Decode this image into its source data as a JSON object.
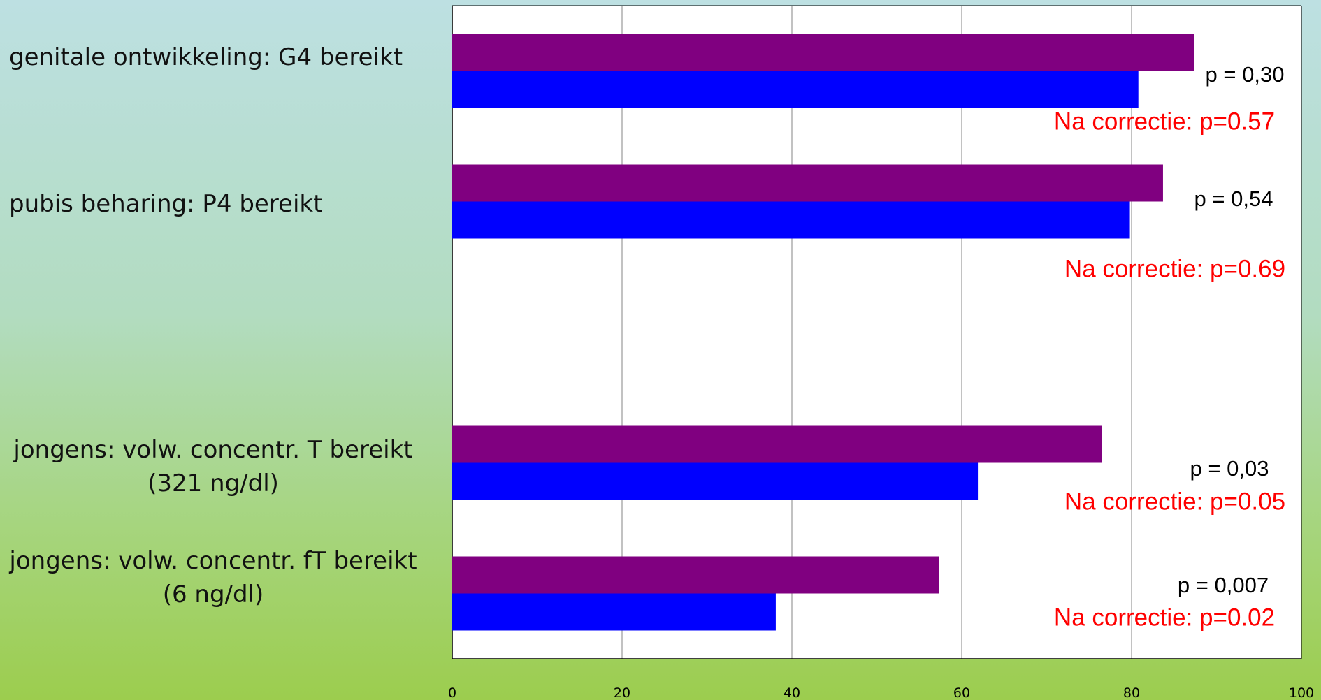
{
  "chart_data": {
    "type": "hbar",
    "categories": [
      "genitale ontwikkeling: G4 bereikt",
      "pubis beharing: P4 bereikt",
      null,
      "jongens: volw. concentr. T bereikt\n(321 ng/dl)",
      "jongens: volw. concentr.  fT bereikt\n(6 ng/dl)"
    ],
    "series": [
      {
        "color": "#800080",
        "values": [
          87.4,
          83.7,
          null,
          76.5,
          57.3
        ]
      },
      {
        "color": "#0000ff",
        "values": [
          80.8,
          79.8,
          null,
          61.9,
          38.1
        ]
      }
    ],
    "xlim": [
      0,
      100
    ],
    "xticks": [
      0,
      20,
      40,
      60,
      80,
      100
    ],
    "grid": true,
    "annotations": [
      {
        "text": "p = 0,30",
        "color": "#000000"
      },
      {
        "text": "Na correctie: p=0.57",
        "color": "#ff0000"
      },
      {
        "text": "p = 0,54",
        "color": "#000000"
      },
      {
        "text": "Na correctie: p=0.69",
        "color": "#ff0000"
      },
      {
        "text": "p = 0,03",
        "color": "#000000"
      },
      {
        "text": "Na correctie: p=0.05",
        "color": "#ff0000"
      },
      {
        "text": "p = 0,007",
        "color": "#000000"
      },
      {
        "text": "Na correctie: p=0.02",
        "color": "#ff0000"
      }
    ]
  }
}
